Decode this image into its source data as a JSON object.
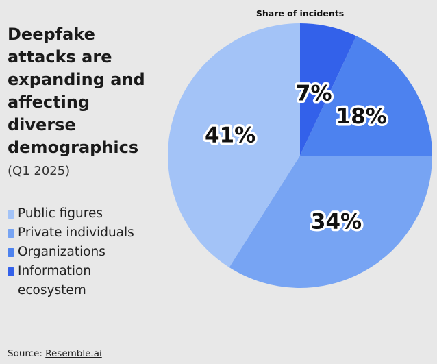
{
  "title": "Deepfake attacks are expanding and affecting diverse demographics",
  "subtitle": "(Q1 2025)",
  "source_prefix": "Source: ",
  "source_link": "Resemble.ai",
  "chart_data": {
    "type": "pie",
    "title": "Share of incidents",
    "legend_position": "left",
    "labels": [
      "Public figures",
      "Private individuals",
      "Organizations",
      "Information ecosystem"
    ],
    "values": [
      41,
      34,
      18,
      7
    ],
    "value_labels": [
      "41%",
      "34%",
      "18%",
      "7%"
    ],
    "colors": [
      "#a3c3f7",
      "#77a4f3",
      "#4d82ef",
      "#3361ea"
    ]
  }
}
